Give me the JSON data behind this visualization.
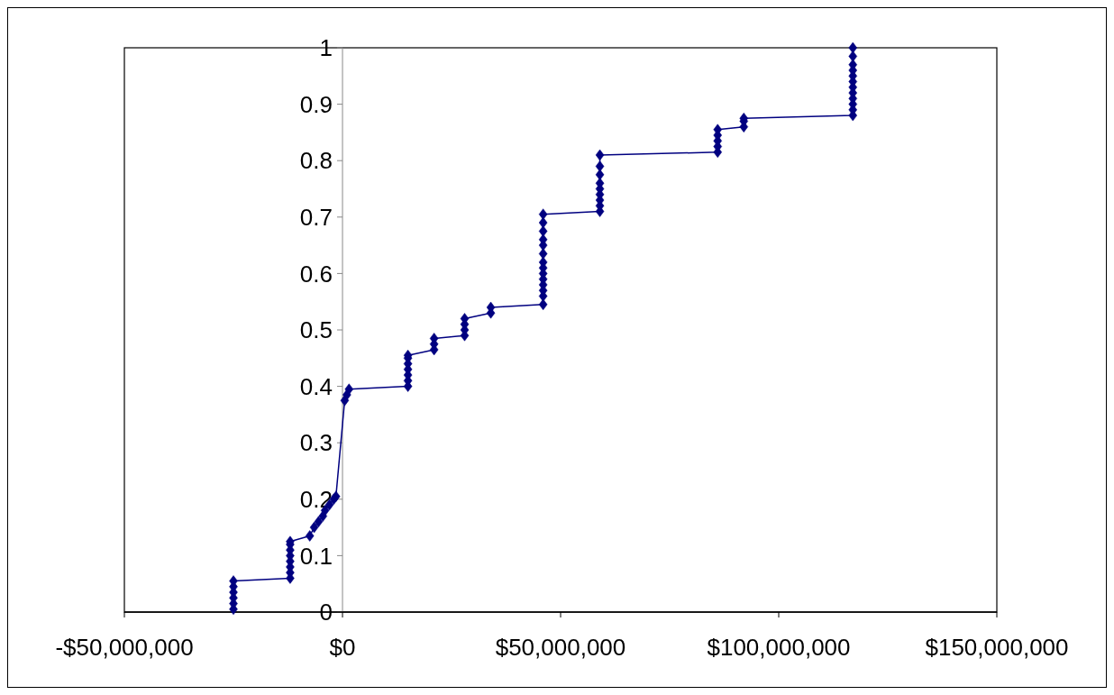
{
  "chart_data": {
    "type": "line",
    "marker": "diamond",
    "line_style": "solid",
    "xlim": [
      -50000000,
      150000000
    ],
    "xticks": [
      {
        "value": -50000000,
        "label": "-$50,000,000"
      },
      {
        "value": 0,
        "label": "$0"
      },
      {
        "value": 50000000,
        "label": "$50,000,000"
      },
      {
        "value": 100000000,
        "label": "$100,000,000"
      },
      {
        "value": 150000000,
        "label": "$150,000,000"
      }
    ],
    "ylim": [
      0,
      1
    ],
    "yticks": [
      0,
      0.1,
      0.2,
      0.3,
      0.4,
      0.5,
      0.6,
      0.7,
      0.8,
      0.9,
      1
    ],
    "series": [
      {
        "color": "#000080",
        "x": [
          -25000000,
          -25000000,
          -25000000,
          -25000000,
          -25000000,
          -25000000,
          -12000000,
          -12000000,
          -12000000,
          -12000000,
          -12000000,
          -12000000,
          -12000000,
          -12000000,
          -7500000,
          -6500000,
          -5500000,
          -4500000,
          -4000000,
          -3000000,
          -2000000,
          -1500000,
          500000,
          1000000,
          1500000,
          15000000,
          15000000,
          15000000,
          15000000,
          15000000,
          15000000,
          15000000,
          21000000,
          21000000,
          21000000,
          28000000,
          28000000,
          28000000,
          28000000,
          34000000,
          34000000,
          46000000,
          46000000,
          46000000,
          46000000,
          46000000,
          46000000,
          46000000,
          46000000,
          46000000,
          46000000,
          46000000,
          46000000,
          46000000,
          46000000,
          59000000,
          59000000,
          59000000,
          59000000,
          59000000,
          59000000,
          59000000,
          59000000,
          59000000,
          86000000,
          86000000,
          86000000,
          86000000,
          86000000,
          92000000,
          92000000,
          92000000,
          117000000,
          117000000,
          117000000,
          117000000,
          117000000,
          117000000,
          117000000,
          117000000,
          117000000,
          117000000,
          117000000,
          117000000
        ],
        "values": [
          0.005,
          0.015,
          0.025,
          0.035,
          0.045,
          0.055,
          0.06,
          0.07,
          0.08,
          0.09,
          0.1,
          0.11,
          0.12,
          0.125,
          0.135,
          0.15,
          0.16,
          0.17,
          0.18,
          0.19,
          0.2,
          0.205,
          0.375,
          0.385,
          0.395,
          0.4,
          0.41,
          0.42,
          0.43,
          0.44,
          0.45,
          0.455,
          0.465,
          0.475,
          0.485,
          0.49,
          0.5,
          0.51,
          0.52,
          0.53,
          0.54,
          0.545,
          0.56,
          0.57,
          0.58,
          0.59,
          0.6,
          0.61,
          0.62,
          0.635,
          0.65,
          0.66,
          0.675,
          0.69,
          0.705,
          0.71,
          0.72,
          0.73,
          0.74,
          0.75,
          0.76,
          0.775,
          0.79,
          0.81,
          0.815,
          0.825,
          0.835,
          0.845,
          0.855,
          0.86,
          0.87,
          0.875,
          0.88,
          0.89,
          0.9,
          0.91,
          0.92,
          0.93,
          0.94,
          0.95,
          0.96,
          0.97,
          0.985,
          1
        ]
      }
    ]
  }
}
